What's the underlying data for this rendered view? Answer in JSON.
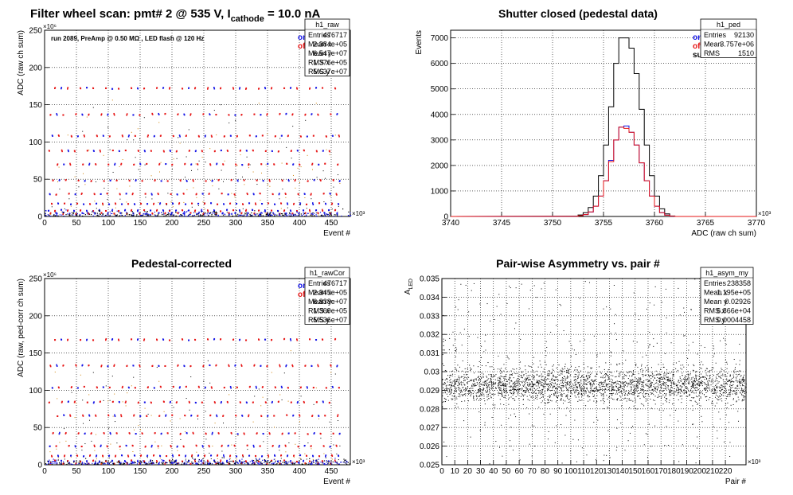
{
  "chart_data": [
    {
      "type": "scatter",
      "id": "h1_raw",
      "title": "Filter wheel scan: pmt#   2 @   535 V, I",
      "title_sub": "cathode",
      "title_suffix": "   = 10.0 nA",
      "subtitle": "run 2089, PreAmp @ 0.50 MΩ , LED flash @  120 Hz",
      "xlabel": "Event #",
      "ylabel": "ADC (raw ch sum)",
      "x_exponent": "×10³",
      "y_exponent": "×10⁶",
      "xlim": [
        0,
        480
      ],
      "ylim": [
        0,
        250
      ],
      "x_ticks": [
        "0",
        "50",
        "100",
        "150",
        "200",
        "250",
        "300",
        "350",
        "400",
        "450"
      ],
      "x_tick_values": [
        0,
        50,
        100,
        150,
        200,
        250,
        300,
        350,
        400,
        450
      ],
      "y_ticks": [
        "0",
        "50",
        "100",
        "150",
        "200",
        "250"
      ],
      "y_tick_values": [
        0,
        50,
        100,
        150,
        200,
        250
      ],
      "legend": [
        {
          "name": "on",
          "color": "#1414e6"
        },
        {
          "name": "off",
          "color": "#e61414"
        }
      ],
      "stats_box": {
        "title": "h1_raw",
        "rows": [
          [
            "Entries",
            "476717"
          ],
          [
            "Mean x",
            "2.384e+05"
          ],
          [
            "Mean y",
            "6.547e+07"
          ],
          [
            "RMS x",
            "1.376e+05"
          ],
          [
            "RMS y",
            "5.637e+07"
          ]
        ]
      },
      "levels": [
        172,
        137,
        108,
        88,
        70,
        48,
        30,
        17,
        8,
        4
      ],
      "grid": true
    },
    {
      "type": "line",
      "id": "h1_ped",
      "title": "Shutter closed (pedestal data)",
      "xlabel": "ADC (raw ch sum)",
      "ylabel": "Events",
      "x_exponent": "×10³",
      "xlim": [
        3740,
        3770
      ],
      "ylim": [
        0,
        7300
      ],
      "x_ticks": [
        "3740",
        "3745",
        "3750",
        "3755",
        "3760",
        "3765",
        "3770"
      ],
      "x_tick_values": [
        3740,
        3745,
        3750,
        3755,
        3760,
        3765,
        3770
      ],
      "y_ticks": [
        "0",
        "1000",
        "2000",
        "3000",
        "4000",
        "5000",
        "6000",
        "7000"
      ],
      "y_tick_values": [
        0,
        1000,
        2000,
        3000,
        4000,
        5000,
        6000,
        7000
      ],
      "legend": [
        {
          "name": "on",
          "color": "#1414e6"
        },
        {
          "name": "off",
          "color": "#e61414"
        },
        {
          "name": "sum",
          "color": "#000000"
        }
      ],
      "stats_box": {
        "title": "h1_ped",
        "rows": [
          [
            "Entries",
            "92130"
          ],
          [
            "Mean",
            "3.757e+06"
          ],
          [
            "RMS",
            "1510"
          ]
        ]
      },
      "x": [
        3752,
        3752.5,
        3753,
        3753.5,
        3754,
        3754.5,
        3755,
        3755.5,
        3756,
        3756.5,
        3757,
        3757.5,
        3758,
        3758.5,
        3759,
        3759.5,
        3760,
        3760.5,
        3761,
        3761.5
      ],
      "series": [
        {
          "name": "sum",
          "values": [
            10,
            60,
            150,
            350,
            800,
            1600,
            2800,
            4300,
            6000,
            7000,
            7000,
            6600,
            5600,
            4200,
            2800,
            1600,
            800,
            300,
            100,
            20
          ]
        },
        {
          "name": "on",
          "values": [
            5,
            30,
            75,
            170,
            400,
            800,
            1400,
            2200,
            3000,
            3500,
            3550,
            3300,
            2800,
            2100,
            1400,
            800,
            400,
            150,
            50,
            10
          ]
        },
        {
          "name": "off",
          "values": [
            5,
            30,
            75,
            180,
            400,
            800,
            1400,
            2150,
            3000,
            3500,
            3450,
            3300,
            2800,
            2100,
            1400,
            800,
            400,
            150,
            50,
            10
          ]
        }
      ],
      "grid": true
    },
    {
      "type": "scatter",
      "id": "h1_rawCor",
      "title": "Pedestal-corrected",
      "xlabel": "Event #",
      "ylabel": "ADC (raw, ped-corr ch sum)",
      "x_exponent": "×10³",
      "y_exponent": "×10⁶",
      "xlim": [
        0,
        480
      ],
      "ylim": [
        0,
        250
      ],
      "x_ticks": [
        "0",
        "50",
        "100",
        "150",
        "200",
        "250",
        "300",
        "350",
        "400",
        "450"
      ],
      "x_tick_values": [
        0,
        50,
        100,
        150,
        200,
        250,
        300,
        350,
        400,
        450
      ],
      "y_ticks": [
        "0",
        "50",
        "100",
        "150",
        "200",
        "250"
      ],
      "y_tick_values": [
        0,
        50,
        100,
        150,
        200,
        250
      ],
      "legend": [
        {
          "name": "on",
          "color": "#1414e6"
        },
        {
          "name": "off",
          "color": "#e61414"
        }
      ],
      "stats_box": {
        "title": "h1_rawCor",
        "rows": [
          [
            "Entries",
            "476717"
          ],
          [
            "Mean x",
            "2.345e+05"
          ],
          [
            "Mean y",
            "6.838e+07"
          ],
          [
            "RMS x",
            "1.369e+05"
          ],
          [
            "RMS y",
            "5.536e+07"
          ]
        ]
      },
      "levels": [
        168,
        133,
        104,
        84,
        66,
        42,
        25,
        12,
        5,
        2
      ],
      "grid": true
    },
    {
      "type": "scatter",
      "id": "h1_asym_my",
      "title": "Pair-wise Asymmetry vs. pair #",
      "xlabel": "Pair #",
      "ylabel": "A",
      "ylabel_sub": "LED",
      "x_exponent": "×10³",
      "xlim": [
        0,
        236
      ],
      "ylim": [
        0.025,
        0.035
      ],
      "x_ticks": [
        "0",
        "10",
        "20",
        "30",
        "40",
        "50",
        "60",
        "70",
        "80",
        "90",
        "100",
        "110",
        "120",
        "130",
        "140",
        "150",
        "160",
        "170",
        "180",
        "190",
        "200",
        "210",
        "220"
      ],
      "x_tick_values": [
        0,
        10,
        20,
        30,
        40,
        50,
        60,
        70,
        80,
        90,
        100,
        110,
        120,
        130,
        140,
        150,
        160,
        170,
        180,
        190,
        200,
        210,
        220
      ],
      "y_ticks": [
        "0.025",
        "0.026",
        "0.027",
        "0.028",
        "0.029",
        "0.03",
        "0.031",
        "0.032",
        "0.033",
        "0.034",
        "0.035"
      ],
      "y_tick_values": [
        0.025,
        0.026,
        0.027,
        0.028,
        0.029,
        0.03,
        0.031,
        0.032,
        0.033,
        0.034,
        0.035
      ],
      "stats_box": {
        "title": "h1_asym_my",
        "rows": [
          [
            "Entries",
            "238358"
          ],
          [
            "Mean x",
            "1.195e+05"
          ],
          [
            "Mean y",
            "0.02926"
          ],
          [
            "RMS x",
            "6.866e+04"
          ],
          [
            "RMS y",
            "0.0004458"
          ]
        ]
      },
      "band_center": 0.02926,
      "band_rms": 0.0004458,
      "grid": true
    }
  ]
}
